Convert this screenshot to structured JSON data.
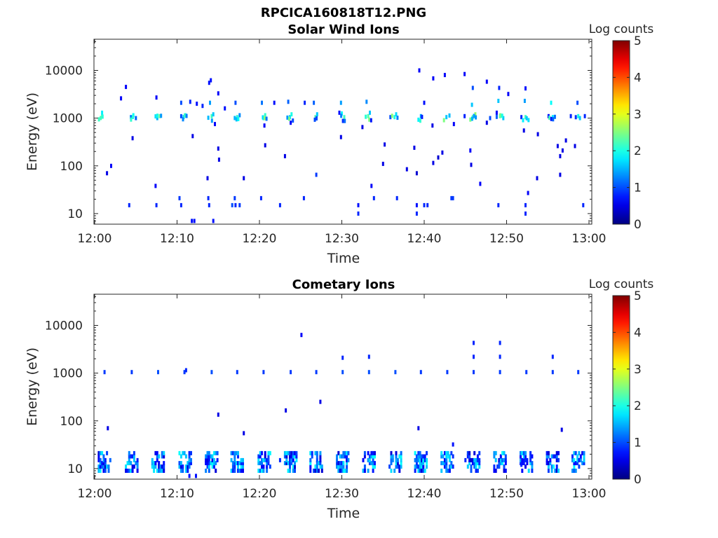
{
  "figure": {
    "title": "RPCICA160818T12.PNG",
    "colormap": "jet"
  },
  "chart_data": [
    {
      "type": "heatmap",
      "title": "Solar Wind Ions",
      "xlabel": "Time",
      "ylabel": "Energy (eV)",
      "x_ticks": [
        "12:00",
        "12:10",
        "12:20",
        "12:30",
        "12:40",
        "12:50",
        "13:00"
      ],
      "x_range_minutes": [
        0,
        60
      ],
      "y_scale": "log",
      "y_ticks": [
        {
          "value": 10,
          "label": "10"
        },
        {
          "value": 100,
          "label": "100"
        },
        {
          "value": 1000,
          "label": "1000"
        },
        {
          "value": 10000,
          "label": "10000"
        }
      ],
      "ylim": [
        6,
        45000
      ],
      "colorbar": {
        "label": "Log counts",
        "min": 0,
        "max": 5,
        "ticks": [
          "0",
          "1",
          "2",
          "3",
          "4",
          "5"
        ]
      },
      "bursts_minutes": [
        0.6,
        4.5,
        7.7,
        10.8,
        14.1,
        17.3,
        20.5,
        23.7,
        26.8,
        30.0,
        33.2,
        36.4,
        39.6,
        42.7,
        45.9,
        49.1,
        52.3,
        55.5,
        58.7
      ],
      "points": [
        {
          "t": 0.9,
          "e": 1100,
          "v": 2.3
        },
        {
          "t": 0.9,
          "e": 1300,
          "v": 1.8
        },
        {
          "t": 1.5,
          "e": 70,
          "v": 0.5
        },
        {
          "t": 2.0,
          "e": 100,
          "v": 0.6
        },
        {
          "t": 3.2,
          "e": 2600,
          "v": 0.6
        },
        {
          "t": 3.8,
          "e": 4500,
          "v": 0.6
        },
        {
          "t": 4.4,
          "e": 1050,
          "v": 1.2
        },
        {
          "t": 4.7,
          "e": 1150,
          "v": 1.9
        },
        {
          "t": 4.6,
          "e": 380,
          "v": 0.5
        },
        {
          "t": 5.0,
          "e": 1000,
          "v": 1.1
        },
        {
          "t": 7.5,
          "e": 2700,
          "v": 0.6
        },
        {
          "t": 7.6,
          "e": 1000,
          "v": 1.5
        },
        {
          "t": 7.9,
          "e": 1100,
          "v": 2.4
        },
        {
          "t": 7.4,
          "e": 38,
          "v": 0.6
        },
        {
          "t": 10.5,
          "e": 2100,
          "v": 1.0
        },
        {
          "t": 10.8,
          "e": 1050,
          "v": 1.6
        },
        {
          "t": 11.0,
          "e": 1150,
          "v": 2.0
        },
        {
          "t": 11.6,
          "e": 2200,
          "v": 0.8
        },
        {
          "t": 11.9,
          "e": 420,
          "v": 0.5
        },
        {
          "t": 12.4,
          "e": 2000,
          "v": 0.7
        },
        {
          "t": 13.1,
          "e": 1800,
          "v": 0.8
        },
        {
          "t": 13.9,
          "e": 5500,
          "v": 0.7
        },
        {
          "t": 14.1,
          "e": 6200,
          "v": 0.7
        },
        {
          "t": 14.0,
          "e": 2100,
          "v": 1.4
        },
        {
          "t": 14.2,
          "e": 1100,
          "v": 2.2
        },
        {
          "t": 14.4,
          "e": 1200,
          "v": 1.6
        },
        {
          "t": 14.6,
          "e": 750,
          "v": 0.6
        },
        {
          "t": 15.0,
          "e": 3300,
          "v": 0.6
        },
        {
          "t": 15.0,
          "e": 230,
          "v": 0.5
        },
        {
          "t": 15.1,
          "e": 135,
          "v": 0.5
        },
        {
          "t": 15.8,
          "e": 1600,
          "v": 0.7
        },
        {
          "t": 13.7,
          "e": 55,
          "v": 0.5
        },
        {
          "t": 17.1,
          "e": 2100,
          "v": 1.0
        },
        {
          "t": 17.3,
          "e": 1050,
          "v": 2.1
        },
        {
          "t": 17.6,
          "e": 1150,
          "v": 1.3
        },
        {
          "t": 18.1,
          "e": 55,
          "v": 0.5
        },
        {
          "t": 20.3,
          "e": 2100,
          "v": 1.2
        },
        {
          "t": 20.5,
          "e": 1000,
          "v": 1.8
        },
        {
          "t": 20.7,
          "e": 1150,
          "v": 2.1
        },
        {
          "t": 20.6,
          "e": 700,
          "v": 0.6
        },
        {
          "t": 20.7,
          "e": 270,
          "v": 0.5
        },
        {
          "t": 21.8,
          "e": 2100,
          "v": 0.7
        },
        {
          "t": 23.1,
          "e": 160,
          "v": 0.5
        },
        {
          "t": 23.5,
          "e": 2200,
          "v": 1.1
        },
        {
          "t": 23.7,
          "e": 1050,
          "v": 1.7
        },
        {
          "t": 23.9,
          "e": 1200,
          "v": 2.0
        },
        {
          "t": 23.8,
          "e": 800,
          "v": 0.6
        },
        {
          "t": 25.5,
          "e": 2100,
          "v": 0.8
        },
        {
          "t": 26.6,
          "e": 2100,
          "v": 1.1
        },
        {
          "t": 26.8,
          "e": 1050,
          "v": 2.3
        },
        {
          "t": 27.0,
          "e": 1200,
          "v": 1.6
        },
        {
          "t": 26.9,
          "e": 65,
          "v": 0.9
        },
        {
          "t": 29.9,
          "e": 2100,
          "v": 1.4
        },
        {
          "t": 30.0,
          "e": 1250,
          "v": 1.9
        },
        {
          "t": 30.3,
          "e": 1050,
          "v": 2.2
        },
        {
          "t": 29.7,
          "e": 1300,
          "v": 0.7
        },
        {
          "t": 29.9,
          "e": 400,
          "v": 0.5
        },
        {
          "t": 33.0,
          "e": 2200,
          "v": 1.3
        },
        {
          "t": 33.2,
          "e": 1100,
          "v": 2.3
        },
        {
          "t": 33.4,
          "e": 1300,
          "v": 1.6
        },
        {
          "t": 32.5,
          "e": 650,
          "v": 0.5
        },
        {
          "t": 33.6,
          "e": 38,
          "v": 0.6
        },
        {
          "t": 35.2,
          "e": 280,
          "v": 0.5
        },
        {
          "t": 35.0,
          "e": 110,
          "v": 0.5
        },
        {
          "t": 35.9,
          "e": 1050,
          "v": 1.0
        },
        {
          "t": 36.4,
          "e": 1050,
          "v": 2.0
        },
        {
          "t": 36.6,
          "e": 1200,
          "v": 1.7
        },
        {
          "t": 37.9,
          "e": 85,
          "v": 0.5
        },
        {
          "t": 38.8,
          "e": 240,
          "v": 0.5
        },
        {
          "t": 39.1,
          "e": 70,
          "v": 0.4
        },
        {
          "t": 39.4,
          "e": 10000,
          "v": 0.6
        },
        {
          "t": 39.6,
          "e": 1100,
          "v": 1.4
        },
        {
          "t": 40.0,
          "e": 2100,
          "v": 0.7
        },
        {
          "t": 41.0,
          "e": 700,
          "v": 0.5
        },
        {
          "t": 41.1,
          "e": 115,
          "v": 0.5
        },
        {
          "t": 41.1,
          "e": 6800,
          "v": 0.6
        },
        {
          "t": 41.7,
          "e": 150,
          "v": 0.4
        },
        {
          "t": 42.2,
          "e": 190,
          "v": 0.5
        },
        {
          "t": 42.5,
          "e": 8000,
          "v": 0.6
        },
        {
          "t": 42.7,
          "e": 1050,
          "v": 1.6
        },
        {
          "t": 43.6,
          "e": 750,
          "v": 0.6
        },
        {
          "t": 44.9,
          "e": 8400,
          "v": 0.6
        },
        {
          "t": 44.9,
          "e": 1100,
          "v": 0.8
        },
        {
          "t": 45.6,
          "e": 210,
          "v": 0.6
        },
        {
          "t": 45.7,
          "e": 105,
          "v": 0.5
        },
        {
          "t": 45.9,
          "e": 4300,
          "v": 1.0
        },
        {
          "t": 45.8,
          "e": 1900,
          "v": 1.6
        },
        {
          "t": 45.9,
          "e": 1050,
          "v": 2.3
        },
        {
          "t": 46.2,
          "e": 1200,
          "v": 2.6
        },
        {
          "t": 46.8,
          "e": 42,
          "v": 0.6
        },
        {
          "t": 47.6,
          "e": 5800,
          "v": 0.6
        },
        {
          "t": 47.6,
          "e": 800,
          "v": 0.5
        },
        {
          "t": 48.0,
          "e": 1000,
          "v": 1.0
        },
        {
          "t": 48.8,
          "e": 1300,
          "v": 0.6
        },
        {
          "t": 49.1,
          "e": 4300,
          "v": 0.8
        },
        {
          "t": 49.0,
          "e": 2300,
          "v": 1.6
        },
        {
          "t": 49.2,
          "e": 1100,
          "v": 2.3
        },
        {
          "t": 49.6,
          "e": 1000,
          "v": 1.6
        },
        {
          "t": 50.2,
          "e": 3200,
          "v": 0.6
        },
        {
          "t": 51.8,
          "e": 1050,
          "v": 0.8
        },
        {
          "t": 52.1,
          "e": 550,
          "v": 0.5
        },
        {
          "t": 52.3,
          "e": 4200,
          "v": 0.7
        },
        {
          "t": 52.2,
          "e": 2300,
          "v": 1.4
        },
        {
          "t": 52.3,
          "e": 1050,
          "v": 2.2
        },
        {
          "t": 52.6,
          "e": 27,
          "v": 0.6
        },
        {
          "t": 53.8,
          "e": 460,
          "v": 0.5
        },
        {
          "t": 53.7,
          "e": 55,
          "v": 0.5
        },
        {
          "t": 55.4,
          "e": 2100,
          "v": 1.9
        },
        {
          "t": 55.6,
          "e": 1050,
          "v": 1.8
        },
        {
          "t": 55.1,
          "e": 1100,
          "v": 0.7
        },
        {
          "t": 56.2,
          "e": 260,
          "v": 0.5
        },
        {
          "t": 56.5,
          "e": 160,
          "v": 0.5
        },
        {
          "t": 56.5,
          "e": 65,
          "v": 0.5
        },
        {
          "t": 56.8,
          "e": 210,
          "v": 0.5
        },
        {
          "t": 57.2,
          "e": 340,
          "v": 0.5
        },
        {
          "t": 57.8,
          "e": 1100,
          "v": 0.8
        },
        {
          "t": 58.3,
          "e": 260,
          "v": 0.5
        },
        {
          "t": 58.6,
          "e": 2100,
          "v": 1.0
        },
        {
          "t": 58.7,
          "e": 1100,
          "v": 2.0
        },
        {
          "t": 58.9,
          "e": 1000,
          "v": 1.6
        },
        {
          "t": 59.5,
          "e": 1100,
          "v": 0.8
        }
      ],
      "low_energy": [
        {
          "t": 4.2,
          "e": 15,
          "v": 0.8
        },
        {
          "t": 7.5,
          "e": 15,
          "v": 0.8
        },
        {
          "t": 10.3,
          "e": 21,
          "v": 0.9
        },
        {
          "t": 10.5,
          "e": 15,
          "v": 0.8
        },
        {
          "t": 11.8,
          "e": 7,
          "v": 0.7
        },
        {
          "t": 12.1,
          "e": 7,
          "v": 0.7
        },
        {
          "t": 13.8,
          "e": 21,
          "v": 0.8
        },
        {
          "t": 13.9,
          "e": 15,
          "v": 0.8
        },
        {
          "t": 14.4,
          "e": 7,
          "v": 0.7
        },
        {
          "t": 16.7,
          "e": 15,
          "v": 1.0
        },
        {
          "t": 17.0,
          "e": 21,
          "v": 0.9
        },
        {
          "t": 17.1,
          "e": 15,
          "v": 0.8
        },
        {
          "t": 17.6,
          "e": 15,
          "v": 0.9
        },
        {
          "t": 20.2,
          "e": 21,
          "v": 0.8
        },
        {
          "t": 22.5,
          "e": 15,
          "v": 0.8
        },
        {
          "t": 25.4,
          "e": 21,
          "v": 0.8
        },
        {
          "t": 32.0,
          "e": 10,
          "v": 0.8
        },
        {
          "t": 32.0,
          "e": 15,
          "v": 0.7
        },
        {
          "t": 33.9,
          "e": 21,
          "v": 0.8
        },
        {
          "t": 36.7,
          "e": 21,
          "v": 0.8
        },
        {
          "t": 39.1,
          "e": 10,
          "v": 0.8
        },
        {
          "t": 39.1,
          "e": 15,
          "v": 0.7
        },
        {
          "t": 40.0,
          "e": 15,
          "v": 0.8
        },
        {
          "t": 40.4,
          "e": 15,
          "v": 0.8
        },
        {
          "t": 43.3,
          "e": 21,
          "v": 0.9
        },
        {
          "t": 43.5,
          "e": 21,
          "v": 0.9
        },
        {
          "t": 49.0,
          "e": 15,
          "v": 0.8
        },
        {
          "t": 52.3,
          "e": 10,
          "v": 0.8
        },
        {
          "t": 52.3,
          "e": 15,
          "v": 0.8
        },
        {
          "t": 59.3,
          "e": 15,
          "v": 0.8
        }
      ]
    },
    {
      "type": "heatmap",
      "title": "Cometary Ions",
      "xlabel": "Time",
      "ylabel": "Energy (eV)",
      "x_ticks": [
        "12:00",
        "12:10",
        "12:20",
        "12:30",
        "12:40",
        "12:50",
        "13:00"
      ],
      "x_range_minutes": [
        0,
        60
      ],
      "y_scale": "log",
      "y_ticks": [
        {
          "value": 10,
          "label": "10"
        },
        {
          "value": 100,
          "label": "100"
        },
        {
          "value": 1000,
          "label": "1000"
        },
        {
          "value": 10000,
          "label": "10000"
        }
      ],
      "ylim": [
        6,
        45000
      ],
      "colorbar": {
        "label": "Log counts",
        "min": 0,
        "max": 5,
        "ticks": [
          "0",
          "1",
          "2",
          "3",
          "4",
          "5"
        ]
      },
      "bursts_minutes": [
        1.2,
        4.5,
        7.7,
        11.0,
        14.2,
        17.3,
        20.6,
        23.8,
        26.9,
        30.1,
        33.3,
        36.5,
        39.6,
        42.8,
        46.0,
        49.2,
        52.4,
        55.6,
        58.7
      ],
      "points": [
        {
          "t": 1.2,
          "e": 1050,
          "v": 0.9
        },
        {
          "t": 1.6,
          "e": 70,
          "v": 0.5
        },
        {
          "t": 4.5,
          "e": 1050,
          "v": 0.9
        },
        {
          "t": 7.7,
          "e": 1050,
          "v": 1.0
        },
        {
          "t": 10.9,
          "e": 1050,
          "v": 0.9
        },
        {
          "t": 11.1,
          "e": 1150,
          "v": 0.8
        },
        {
          "t": 14.2,
          "e": 1050,
          "v": 1.0
        },
        {
          "t": 15.0,
          "e": 135,
          "v": 0.5
        },
        {
          "t": 17.3,
          "e": 1050,
          "v": 0.9
        },
        {
          "t": 18.1,
          "e": 55,
          "v": 0.5
        },
        {
          "t": 20.5,
          "e": 1050,
          "v": 0.9
        },
        {
          "t": 23.2,
          "e": 165,
          "v": 0.5
        },
        {
          "t": 23.8,
          "e": 1050,
          "v": 0.9
        },
        {
          "t": 25.1,
          "e": 6300,
          "v": 0.6
        },
        {
          "t": 26.9,
          "e": 1050,
          "v": 0.9
        },
        {
          "t": 27.4,
          "e": 250,
          "v": 0.5
        },
        {
          "t": 30.1,
          "e": 2100,
          "v": 0.8
        },
        {
          "t": 30.1,
          "e": 1050,
          "v": 1.0
        },
        {
          "t": 33.3,
          "e": 2200,
          "v": 0.8
        },
        {
          "t": 33.3,
          "e": 1050,
          "v": 1.0
        },
        {
          "t": 36.5,
          "e": 1050,
          "v": 1.0
        },
        {
          "t": 39.3,
          "e": 70,
          "v": 0.5
        },
        {
          "t": 39.6,
          "e": 1050,
          "v": 0.9
        },
        {
          "t": 42.8,
          "e": 1050,
          "v": 0.9
        },
        {
          "t": 46.0,
          "e": 4300,
          "v": 0.8
        },
        {
          "t": 46.0,
          "e": 2200,
          "v": 0.8
        },
        {
          "t": 46.0,
          "e": 1050,
          "v": 0.9
        },
        {
          "t": 49.2,
          "e": 4300,
          "v": 0.8
        },
        {
          "t": 49.2,
          "e": 2200,
          "v": 0.8
        },
        {
          "t": 49.2,
          "e": 1050,
          "v": 0.9
        },
        {
          "t": 52.4,
          "e": 1050,
          "v": 0.9
        },
        {
          "t": 55.6,
          "e": 2200,
          "v": 0.8
        },
        {
          "t": 55.6,
          "e": 1050,
          "v": 0.9
        },
        {
          "t": 56.7,
          "e": 65,
          "v": 0.5
        },
        {
          "t": 58.7,
          "e": 1050,
          "v": 0.9
        },
        {
          "t": 43.5,
          "e": 32,
          "v": 0.7
        }
      ],
      "low_energy": [
        {
          "t": 11.5,
          "e": 7,
          "v": 0.7
        },
        {
          "t": 12.3,
          "e": 7,
          "v": 0.7
        },
        {
          "t": 22.5,
          "e": 15,
          "v": 0.8
        },
        {
          "t": 45.0,
          "e": 15,
          "v": 0.8
        },
        {
          "t": 51.8,
          "e": 12,
          "v": 0.8
        }
      ]
    }
  ]
}
